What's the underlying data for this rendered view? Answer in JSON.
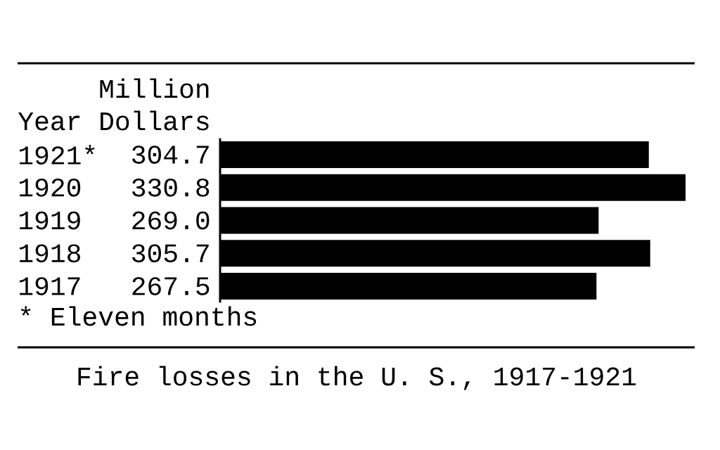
{
  "chart_data": {
    "type": "bar",
    "orientation": "horizontal",
    "title": "Fire losses in the U. S., 1917-1921",
    "xlabel": "Million Dollars",
    "ylabel": "Year",
    "categories": [
      "1921*",
      "1920",
      "1919",
      "1918",
      "1917"
    ],
    "values": [
      304.7,
      330.8,
      269.0,
      305.7,
      267.5
    ],
    "value_labels": [
      "304.7",
      "330.8",
      "269.0",
      "305.7",
      "267.5"
    ],
    "color": "#000000",
    "annotations": [
      "* Eleven months"
    ]
  }
}
